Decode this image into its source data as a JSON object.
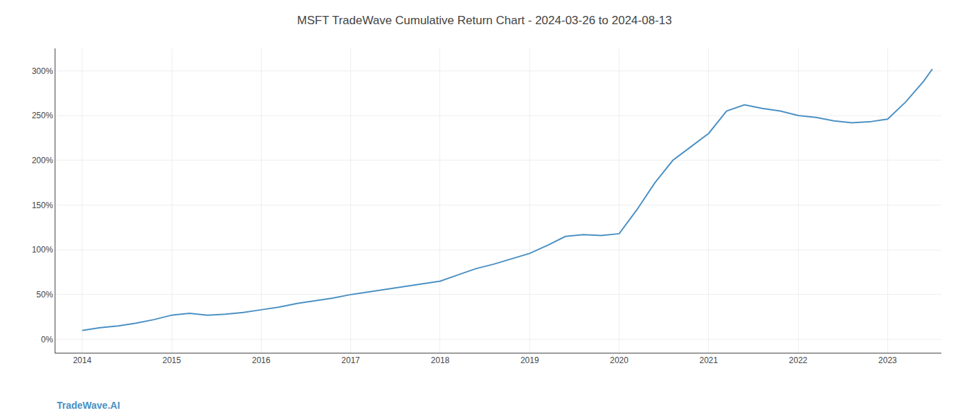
{
  "chart_data": {
    "type": "line",
    "title": "MSFT TradeWave Cumulative Return Chart - 2024-03-26 to 2024-08-13",
    "annotations": [
      "TradeWave.AI"
    ],
    "x": [
      2014.0,
      2014.2,
      2014.4,
      2014.6,
      2014.8,
      2015.0,
      2015.2,
      2015.4,
      2015.6,
      2015.8,
      2016.0,
      2016.2,
      2016.4,
      2016.6,
      2016.8,
      2017.0,
      2017.2,
      2017.4,
      2017.6,
      2017.8,
      2018.0,
      2018.2,
      2018.4,
      2018.6,
      2018.8,
      2019.0,
      2019.2,
      2019.4,
      2019.6,
      2019.8,
      2020.0,
      2020.2,
      2020.4,
      2020.6,
      2020.8,
      2021.0,
      2021.2,
      2021.4,
      2021.6,
      2021.8,
      2022.0,
      2022.2,
      2022.4,
      2022.6,
      2022.8,
      2023.0,
      2023.2,
      2023.4,
      2023.5
    ],
    "values": [
      10,
      13,
      15,
      18,
      22,
      27,
      29,
      27,
      28,
      30,
      33,
      36,
      40,
      43,
      46,
      50,
      53,
      56,
      59,
      62,
      65,
      72,
      79,
      84,
      90,
      96,
      105,
      115,
      117,
      116,
      118,
      145,
      175,
      200,
      215,
      230,
      255,
      262,
      258,
      255,
      250,
      248,
      244,
      242,
      243,
      246,
      265,
      288,
      302
    ],
    "color": "#4a90c4",
    "xlim": [
      2013.7,
      2023.6
    ],
    "ylim": [
      -15,
      325
    ],
    "xticks": [
      2014,
      2015,
      2016,
      2017,
      2018,
      2019,
      2020,
      2021,
      2022,
      2023
    ],
    "yticks": [
      {
        "value": 0,
        "label": "0%"
      },
      {
        "value": 50,
        "label": "50%"
      },
      {
        "value": 100,
        "label": "100%"
      },
      {
        "value": 150,
        "label": "150%"
      },
      {
        "value": 200,
        "label": "200%"
      },
      {
        "value": 250,
        "label": "250%"
      },
      {
        "value": 300,
        "label": "300%"
      }
    ],
    "grid": true
  }
}
